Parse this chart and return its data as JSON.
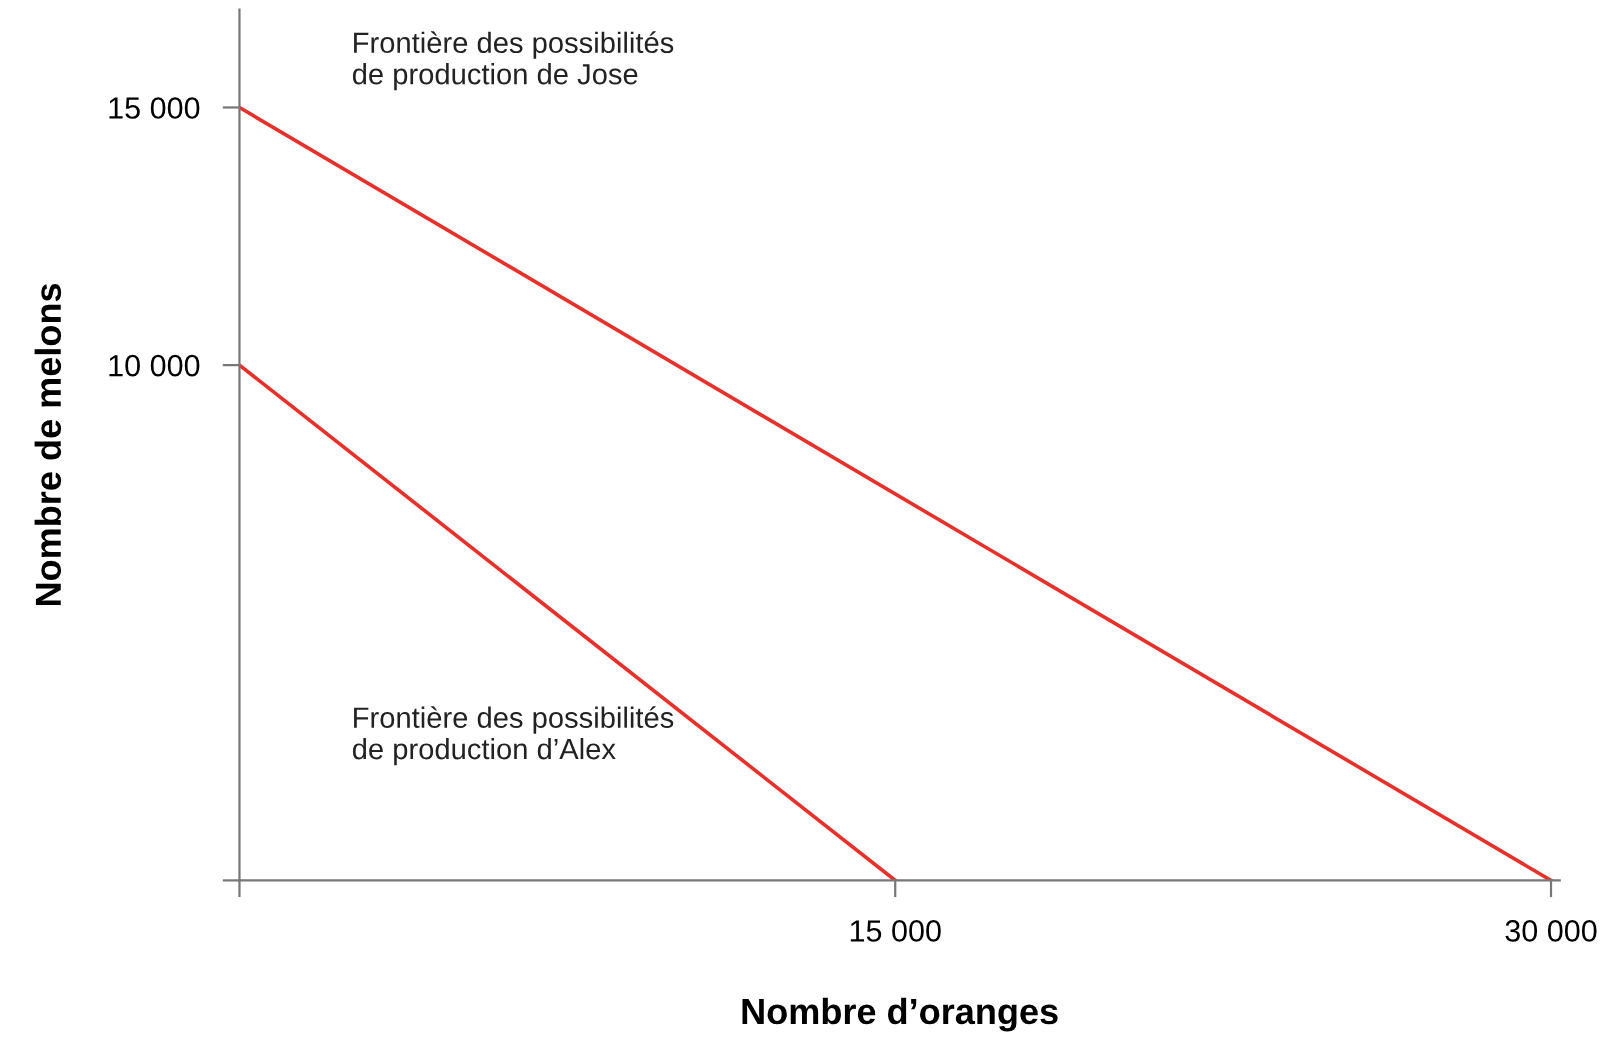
{
  "chart_data": {
    "type": "line",
    "xlabel": "Nombre d’oranges",
    "ylabel": "Nombre de melons",
    "xlim": [
      0,
      30200
    ],
    "ylim": [
      0,
      16900
    ],
    "xticks": [
      {
        "value": 0,
        "label": null
      },
      {
        "value": 15000,
        "label": "15 000"
      },
      {
        "value": 30000,
        "label": "30 000"
      }
    ],
    "yticks": [
      {
        "value": 0,
        "label": null
      },
      {
        "value": 10000,
        "label": "10 000"
      },
      {
        "value": 15000,
        "label": "15 000"
      }
    ],
    "series": [
      {
        "name": "Frontière des possibilités\nde production de Jose",
        "color": "#e8302a",
        "x": [
          0,
          30000
        ],
        "values": [
          15000,
          0
        ]
      },
      {
        "name": "Frontière des possibilités\nde production d’Alex",
        "color": "#e8302a",
        "x": [
          0,
          15000
        ],
        "values": [
          10000,
          0
        ]
      }
    ],
    "grid": false,
    "legend": false,
    "marker": "none",
    "line_style": "solid"
  }
}
